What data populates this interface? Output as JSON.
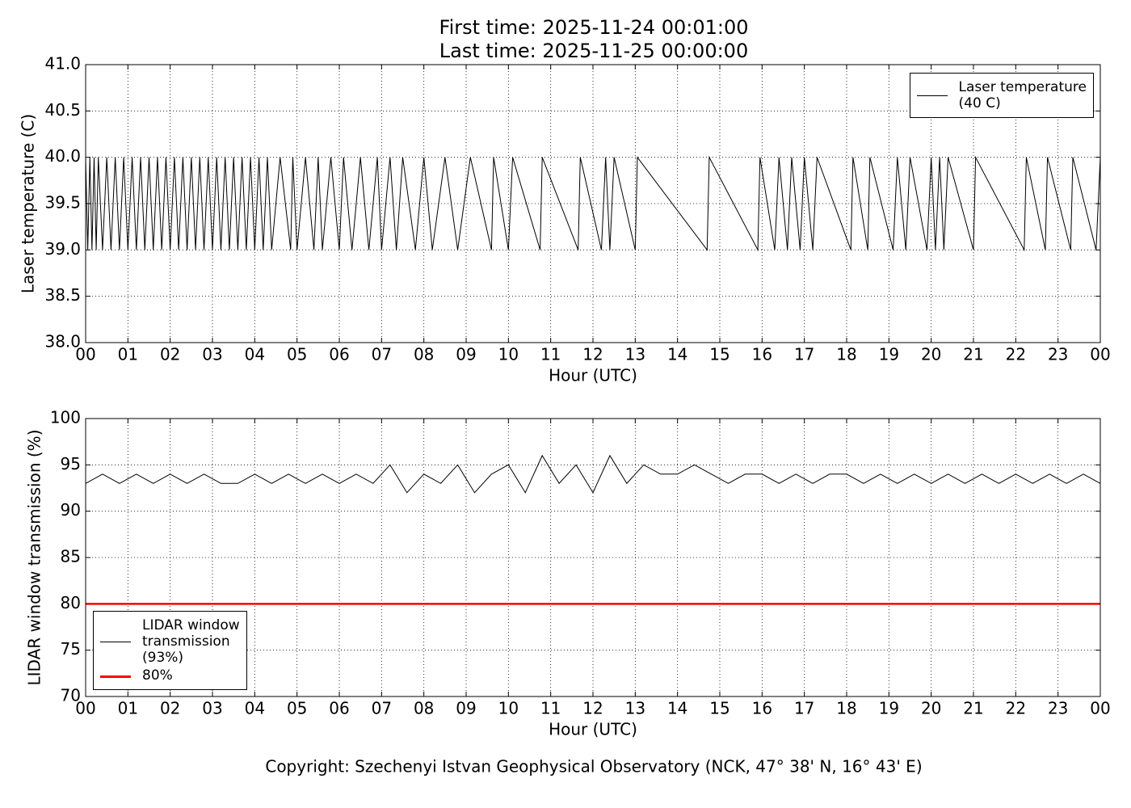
{
  "title": [
    "First time: 2025-11-24 00:01:00",
    "Last time: 2025-11-25 00:00:00"
  ],
  "footer": "Copyright: Szechenyi Istvan Geophysical Observatory (NCK, 47° 38' N, 16° 43' E)",
  "chart_data": [
    {
      "type": "line",
      "ylabel": "Laser temperature (C)",
      "xlabel": "Hour (UTC)",
      "xlim": [
        0,
        24
      ],
      "ylim": [
        38,
        41
      ],
      "grid": true,
      "legend": "upper right",
      "xticks": [
        {
          "value": 0,
          "label": "00"
        },
        {
          "value": 1,
          "label": "01"
        },
        {
          "value": 2,
          "label": "02"
        },
        {
          "value": 3,
          "label": "03"
        },
        {
          "value": 4,
          "label": "04"
        },
        {
          "value": 5,
          "label": "05"
        },
        {
          "value": 6,
          "label": "06"
        },
        {
          "value": 7,
          "label": "07"
        },
        {
          "value": 8,
          "label": "08"
        },
        {
          "value": 9,
          "label": "09"
        },
        {
          "value": 10,
          "label": "10"
        },
        {
          "value": 11,
          "label": "11"
        },
        {
          "value": 12,
          "label": "12"
        },
        {
          "value": 13,
          "label": "13"
        },
        {
          "value": 14,
          "label": "14"
        },
        {
          "value": 15,
          "label": "15"
        },
        {
          "value": 16,
          "label": "16"
        },
        {
          "value": 17,
          "label": "17"
        },
        {
          "value": 18,
          "label": "18"
        },
        {
          "value": 19,
          "label": "19"
        },
        {
          "value": 20,
          "label": "20"
        },
        {
          "value": 21,
          "label": "21"
        },
        {
          "value": 22,
          "label": "22"
        },
        {
          "value": 23,
          "label": "23"
        },
        {
          "value": 24,
          "label": "00"
        }
      ],
      "yticks": [
        {
          "value": 38,
          "label": "38.0"
        },
        38.5,
        {
          "value": 39,
          "label": "39.0"
        },
        39.5,
        {
          "value": 40,
          "label": "40.0"
        },
        40.5,
        {
          "value": 41,
          "label": "41.0"
        }
      ],
      "series": [
        {
          "name": "Laser temperature\n(40 C)",
          "color": "#000000",
          "x": [
            0,
            0.05,
            0.1,
            0.15,
            0.2,
            0.25,
            0.3,
            0.4,
            0.5,
            0.6,
            0.7,
            0.8,
            0.9,
            1.0,
            1.1,
            1.2,
            1.3,
            1.4,
            1.5,
            1.6,
            1.7,
            1.8,
            1.9,
            2.0,
            2.1,
            2.2,
            2.3,
            2.4,
            2.5,
            2.6,
            2.7,
            2.8,
            2.9,
            3.0,
            3.1,
            3.2,
            3.3,
            3.4,
            3.5,
            3.6,
            3.7,
            3.8,
            3.9,
            4.0,
            4.1,
            4.2,
            4.3,
            4.4,
            4.6,
            4.85,
            4.9,
            5.0,
            5.2,
            5.4,
            5.5,
            5.6,
            5.8,
            6.0,
            6.1,
            6.3,
            6.5,
            6.7,
            6.9,
            7.0,
            7.2,
            7.35,
            7.5,
            7.8,
            8.0,
            8.2,
            8.5,
            8.8,
            9.1,
            9.6,
            9.65,
            10.0,
            10.1,
            10.75,
            10.8,
            11.65,
            11.7,
            12.2,
            12.3,
            12.4,
            12.5,
            13.0,
            13.05,
            14.7,
            14.75,
            15.9,
            15.95,
            16.3,
            16.4,
            16.6,
            16.7,
            16.9,
            17.0,
            17.2,
            17.3,
            18.1,
            18.15,
            18.5,
            18.55,
            19.1,
            19.2,
            19.4,
            19.5,
            19.9,
            20.0,
            20.1,
            20.2,
            20.3,
            20.4,
            21.0,
            21.05,
            22.2,
            22.25,
            22.7,
            22.75,
            23.3,
            23.35,
            23.9,
            24.0
          ],
          "values": [
            40,
            39,
            40,
            39,
            40,
            39,
            40,
            39,
            40,
            39,
            40,
            39,
            40,
            39,
            40,
            39,
            40,
            39,
            40,
            39,
            40,
            39,
            40,
            39,
            40,
            39,
            40,
            39,
            40,
            39,
            40,
            39,
            40,
            39,
            40,
            39,
            40,
            39,
            40,
            39,
            40,
            39,
            40,
            39,
            40,
            39,
            40,
            39,
            40,
            39,
            40,
            39,
            40,
            39,
            40,
            39,
            40,
            39,
            40,
            39,
            40,
            39,
            40,
            39,
            40,
            39,
            40,
            39,
            40,
            39,
            40,
            39,
            40,
            39,
            40,
            39,
            40,
            39,
            40,
            39,
            40,
            39,
            40,
            39,
            40,
            39,
            40,
            39,
            40,
            39,
            40,
            39,
            40,
            39,
            40,
            39,
            40,
            39,
            40,
            39,
            40,
            39,
            40,
            39,
            40,
            39,
            40,
            39,
            40,
            39,
            40,
            39,
            40,
            39,
            40,
            39,
            40,
            39,
            40,
            39,
            40,
            39,
            40
          ]
        }
      ]
    },
    {
      "type": "line",
      "ylabel": "LIDAR window transmission (%)",
      "xlabel": "Hour (UTC)",
      "xlim": [
        0,
        24
      ],
      "ylim": [
        70,
        100
      ],
      "grid": true,
      "legend": "lower left",
      "xticks": [
        {
          "value": 0,
          "label": "00"
        },
        {
          "value": 1,
          "label": "01"
        },
        {
          "value": 2,
          "label": "02"
        },
        {
          "value": 3,
          "label": "03"
        },
        {
          "value": 4,
          "label": "04"
        },
        {
          "value": 5,
          "label": "05"
        },
        {
          "value": 6,
          "label": "06"
        },
        {
          "value": 7,
          "label": "07"
        },
        {
          "value": 8,
          "label": "08"
        },
        {
          "value": 9,
          "label": "09"
        },
        {
          "value": 10,
          "label": "10"
        },
        {
          "value": 11,
          "label": "11"
        },
        {
          "value": 12,
          "label": "12"
        },
        {
          "value": 13,
          "label": "13"
        },
        {
          "value": 14,
          "label": "14"
        },
        {
          "value": 15,
          "label": "15"
        },
        {
          "value": 16,
          "label": "16"
        },
        {
          "value": 17,
          "label": "17"
        },
        {
          "value": 18,
          "label": "18"
        },
        {
          "value": 19,
          "label": "19"
        },
        {
          "value": 20,
          "label": "20"
        },
        {
          "value": 21,
          "label": "21"
        },
        {
          "value": 22,
          "label": "22"
        },
        {
          "value": 23,
          "label": "23"
        },
        {
          "value": 24,
          "label": "00"
        }
      ],
      "yticks": [
        70,
        75,
        80,
        85,
        90,
        95,
        100
      ],
      "series": [
        {
          "name": "LIDAR window\ntransmission\n(93%)",
          "color": "#000000",
          "x": [
            0,
            0.4,
            0.8,
            1.2,
            1.6,
            2.0,
            2.4,
            2.8,
            3.2,
            3.6,
            4.0,
            4.4,
            4.8,
            5.2,
            5.6,
            6.0,
            6.4,
            6.8,
            7.2,
            7.6,
            8.0,
            8.4,
            8.8,
            9.2,
            9.6,
            10.0,
            10.4,
            10.8,
            11.2,
            11.6,
            12.0,
            12.4,
            12.8,
            13.2,
            13.6,
            14.0,
            14.4,
            14.8,
            15.2,
            15.6,
            16.0,
            16.4,
            16.8,
            17.2,
            17.6,
            18.0,
            18.4,
            18.8,
            19.2,
            19.6,
            20.0,
            20.4,
            20.8,
            21.2,
            21.6,
            22.0,
            22.4,
            22.8,
            23.2,
            23.6,
            24.0
          ],
          "values": [
            93,
            94,
            93,
            94,
            93,
            94,
            93,
            94,
            93,
            93,
            94,
            93,
            94,
            93,
            94,
            93,
            94,
            93,
            95,
            92,
            94,
            93,
            95,
            92,
            94,
            95,
            92,
            96,
            93,
            95,
            92,
            96,
            93,
            95,
            94,
            94,
            95,
            94,
            93,
            94,
            94,
            93,
            94,
            93,
            94,
            94,
            93,
            94,
            93,
            94,
            93,
            94,
            93,
            94,
            93,
            94,
            93,
            94,
            93,
            94,
            93
          ]
        },
        {
          "name": "80%",
          "color": "#ff0000",
          "x": [
            0,
            24
          ],
          "values": [
            80,
            80
          ]
        }
      ]
    }
  ]
}
